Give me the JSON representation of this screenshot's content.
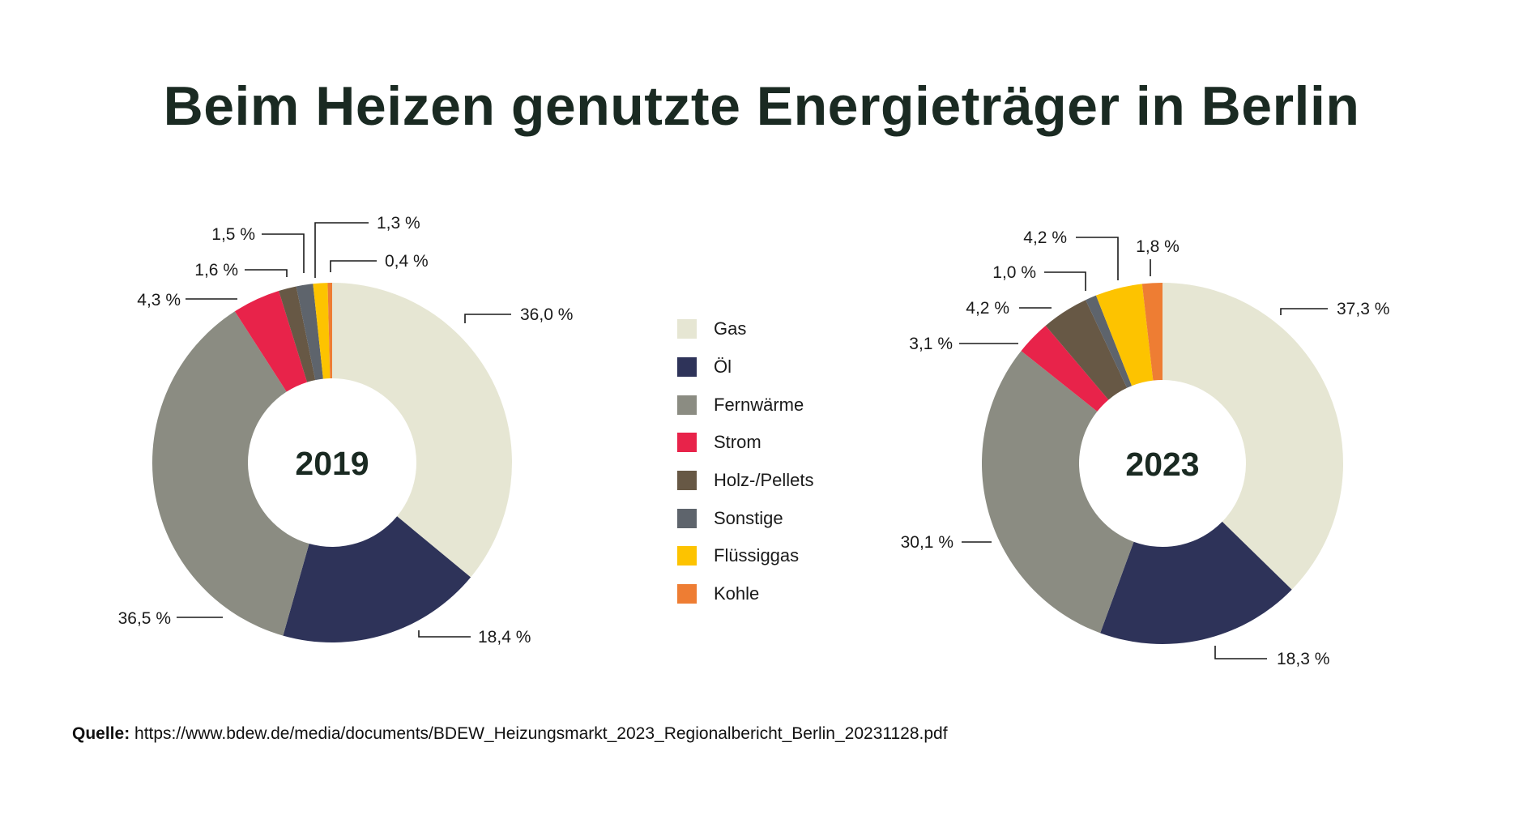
{
  "title": "Beim Heizen genutzte Energieträger in Berlin",
  "legend": [
    {
      "label": "Gas",
      "color": "#e6e6d3"
    },
    {
      "label": "Öl",
      "color": "#2e3359"
    },
    {
      "label": "Fernwärme",
      "color": "#8b8c82"
    },
    {
      "label": "Strom",
      "color": "#e8234a"
    },
    {
      "label": "Holz-/Pellets",
      "color": "#675845"
    },
    {
      "label": "Sonstige",
      "color": "#5e646c"
    },
    {
      "label": "Flüssiggas",
      "color": "#fdc300"
    },
    {
      "label": "Kohle",
      "color": "#ee7d33"
    }
  ],
  "chart_data": [
    {
      "type": "pie",
      "donut": true,
      "center_label": "2019",
      "categories": [
        "Gas",
        "Öl",
        "Fernwärme",
        "Strom",
        "Holz-/Pellets",
        "Sonstige",
        "Flüssiggas",
        "Kohle"
      ],
      "values": [
        36.0,
        18.4,
        36.5,
        4.3,
        1.6,
        1.5,
        1.3,
        0.4
      ],
      "data_labels": [
        "36,0 %",
        "18,4 %",
        "36,5 %",
        "4,3 %",
        "1,6 %",
        "1,5 %",
        "1,3 %",
        "0,4 %"
      ]
    },
    {
      "type": "pie",
      "donut": true,
      "center_label": "2023",
      "categories": [
        "Gas",
        "Öl",
        "Fernwärme",
        "Strom",
        "Holz-/Pellets",
        "Sonstige",
        "Flüssiggas",
        "Kohle"
      ],
      "values": [
        37.3,
        18.3,
        30.1,
        3.1,
        4.2,
        1.0,
        4.2,
        1.8
      ],
      "data_labels": [
        "37,3 %",
        "18,3 %",
        "30,1 %",
        "3,1 %",
        "4,2 %",
        "1,0 %",
        "4,2 %",
        "1,8 %"
      ]
    }
  ],
  "source": {
    "label": "Quelle:",
    "text": "https://www.bdew.de/media/documents/BDEW_Heizungsmarkt_2023_Regionalbericht_Berlin_20231128.pdf"
  }
}
